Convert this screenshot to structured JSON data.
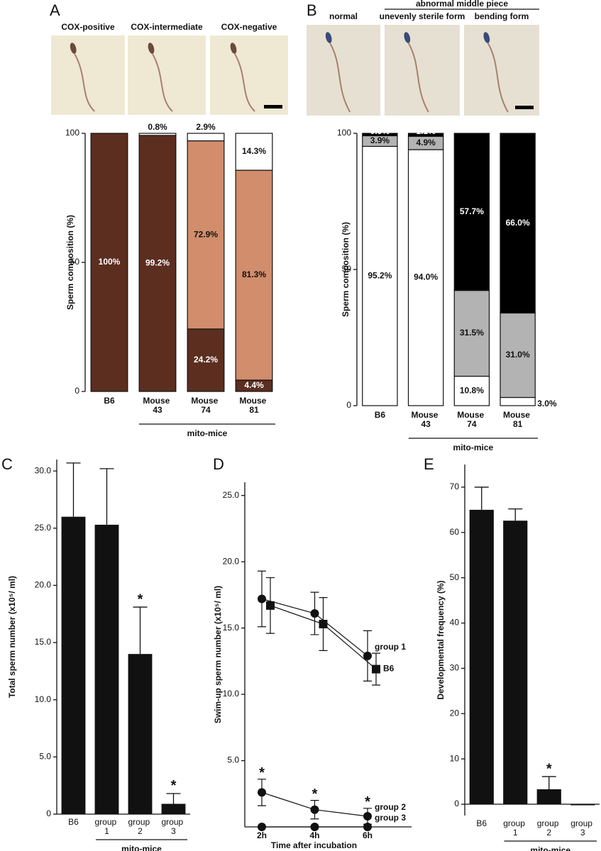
{
  "chart_data": [
    {
      "type": "stacked_bar",
      "panel": "A",
      "categories": [
        "B6",
        "Mouse 43",
        "Mouse 74",
        "Mouse 81"
      ],
      "series": [
        {
          "name": "COX-positive",
          "color": "#5c2e20",
          "values": [
            100,
            99.2,
            24.2,
            4.4
          ],
          "value_labels": [
            "100%",
            "99.2%",
            "24.2%",
            "4.4%"
          ]
        },
        {
          "name": "COX-intermediate",
          "color": "#d18d6c",
          "values": [
            0,
            0,
            72.9,
            81.3
          ],
          "value_labels": [
            null,
            null,
            "72.9%",
            "81.3%"
          ]
        },
        {
          "name": "COX-negative",
          "color": "#ffffff",
          "values": [
            0,
            0.8,
            2.9,
            14.3
          ],
          "value_labels": [
            null,
            "0.8%",
            "2.9%",
            "14.3%"
          ]
        }
      ],
      "ylabel": "Sperm composition (%)",
      "ylim": [
        0,
        100
      ],
      "yticks": [
        0,
        50,
        100
      ],
      "group_label": "mito-mice"
    },
    {
      "type": "stacked_bar",
      "panel": "B",
      "header": "abnormal middle piece",
      "categories": [
        "B6",
        "Mouse 43",
        "Mouse 74",
        "Mouse 81"
      ],
      "series": [
        {
          "name": "normal",
          "color": "#ffffff",
          "values": [
            95.2,
            94.0,
            10.8,
            3.0
          ],
          "value_labels": [
            "95.2%",
            "94.0%",
            "10.8%",
            "3.0%"
          ]
        },
        {
          "name": "unevenly sterile form",
          "color": "#b3b3b3",
          "values": [
            3.9,
            4.9,
            31.5,
            31.0
          ],
          "value_labels": [
            "3.9%",
            "4.9%",
            "31.5%",
            "31.0%"
          ]
        },
        {
          "name": "bending form",
          "color": "#000000",
          "values": [
            0.9,
            1.1,
            57.7,
            66.0
          ],
          "value_labels": [
            "0.9%",
            "1.1%",
            "57.7%",
            "66.0%"
          ]
        }
      ],
      "ylabel": "Sperm composition (%)",
      "ylim": [
        0,
        100
      ],
      "yticks": [
        0,
        50,
        100
      ],
      "group_label": "mito-mice"
    },
    {
      "type": "bar",
      "panel": "C",
      "color": "#111111",
      "categories": [
        "B6",
        "group 1",
        "group 2",
        "group 3"
      ],
      "values": [
        26.0,
        25.3,
        14.0,
        0.9
      ],
      "errors": [
        4.7,
        4.9,
        4.1,
        0.9
      ],
      "significance": [
        null,
        null,
        "*",
        "*"
      ],
      "ylabel": "Total sperm number (x10⁵/ ml)",
      "ylim": [
        0,
        31
      ],
      "yticks": [
        0,
        {
          "value": 5,
          "label": "5.0"
        },
        {
          "value": 10,
          "label": "10.0"
        },
        {
          "value": 15,
          "label": "15.0"
        },
        {
          "value": 20,
          "label": "20.0"
        },
        {
          "value": 25,
          "label": "25.0"
        },
        {
          "value": 30,
          "label": "30.0"
        }
      ],
      "group_label": "mito-mice"
    },
    {
      "type": "line",
      "panel": "D",
      "categories": [
        "2h",
        "4h",
        "6h"
      ],
      "series": [
        {
          "name": "group 1",
          "marker": "circle",
          "values": [
            17.2,
            16.1,
            12.9
          ],
          "errors": [
            2.1,
            1.6,
            1.9
          ]
        },
        {
          "name": "B6",
          "marker": "square",
          "values": [
            16.7,
            15.3,
            11.9
          ],
          "errors": [
            2.1,
            2.0,
            1.2
          ]
        },
        {
          "name": "group 2",
          "marker": "circle",
          "values": [
            2.6,
            1.3,
            0.8
          ],
          "errors": [
            1.0,
            0.7,
            0.6
          ],
          "significance": [
            "*",
            "*",
            "*"
          ]
        },
        {
          "name": "group 3",
          "marker": "circle",
          "values": [
            0,
            0,
            0
          ]
        }
      ],
      "xlabel": "Time after incubation",
      "ylabel": "Swim-up sperm number (x10⁵/ ml)",
      "ylim": [
        0,
        26
      ],
      "yticks": [
        {
          "value": 5,
          "label": "5.0"
        },
        {
          "value": 10,
          "label": "10.0"
        },
        {
          "value": 15,
          "label": "15.0"
        },
        {
          "value": 20,
          "label": "20.0"
        },
        {
          "value": 25,
          "label": "25.0"
        }
      ]
    },
    {
      "type": "bar",
      "panel": "E",
      "color": "#111111",
      "categories": [
        "B6",
        "group 1",
        "group 2",
        "group 3"
      ],
      "values": [
        65.0,
        62.6,
        3.3,
        0
      ],
      "errors": [
        5.0,
        2.6,
        2.8,
        null
      ],
      "significance": [
        null,
        null,
        "*",
        null
      ],
      "ylabel": "Developmental frequency (%)",
      "ylim": [
        -2.5,
        75
      ],
      "yticks": [
        0,
        10,
        20,
        30,
        40,
        50,
        60,
        70
      ],
      "group_label": "mito-mice"
    }
  ]
}
